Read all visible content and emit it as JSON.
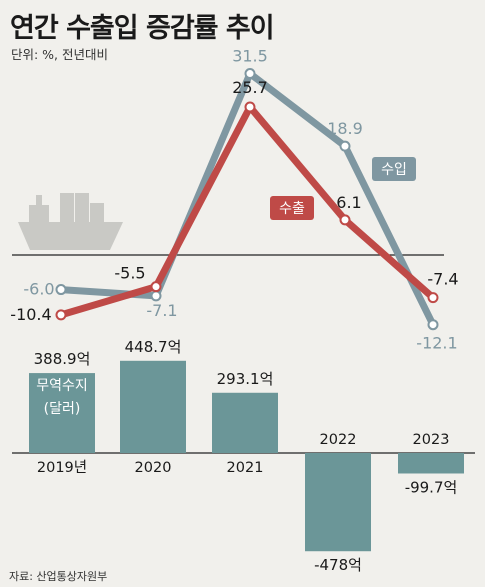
{
  "title": "연간 수출입 증감률 추이",
  "unit": "단위: %, 전년대비",
  "source": "자료: 산업통상자원부",
  "colors": {
    "import": "#7f97a1",
    "export": "#bf4a47",
    "bar": "#6b9698",
    "background": "#f1f0ec"
  },
  "icons": [
    "cargo-ship-icon"
  ],
  "chart_data": [
    {
      "type": "line",
      "x": [
        "2019",
        "2020",
        "2021",
        "2022",
        "2023"
      ],
      "series": [
        {
          "name": "수입",
          "values": [
            -6.0,
            -7.1,
            31.5,
            18.9,
            -12.1
          ],
          "labels": [
            "-6.0",
            "-7.1",
            "31.5",
            "18.9",
            "-12.1"
          ]
        },
        {
          "name": "수출",
          "values": [
            -10.4,
            -5.5,
            25.7,
            6.1,
            -7.4
          ],
          "labels": [
            "-10.4",
            "-5.5",
            "25.7",
            "6.1",
            "-7.4"
          ]
        }
      ]
    },
    {
      "type": "bar",
      "categories": [
        "2019년",
        "2020",
        "2021",
        "2022",
        "2023"
      ],
      "values": [
        388.9,
        448.7,
        293.1,
        -478,
        -99.7
      ],
      "value_labels": [
        "388.9억",
        "448.7억",
        "293.1억",
        "-478억",
        "-99.7억"
      ],
      "series_label": "무역수지",
      "series_label_unit": "(달러)"
    }
  ]
}
